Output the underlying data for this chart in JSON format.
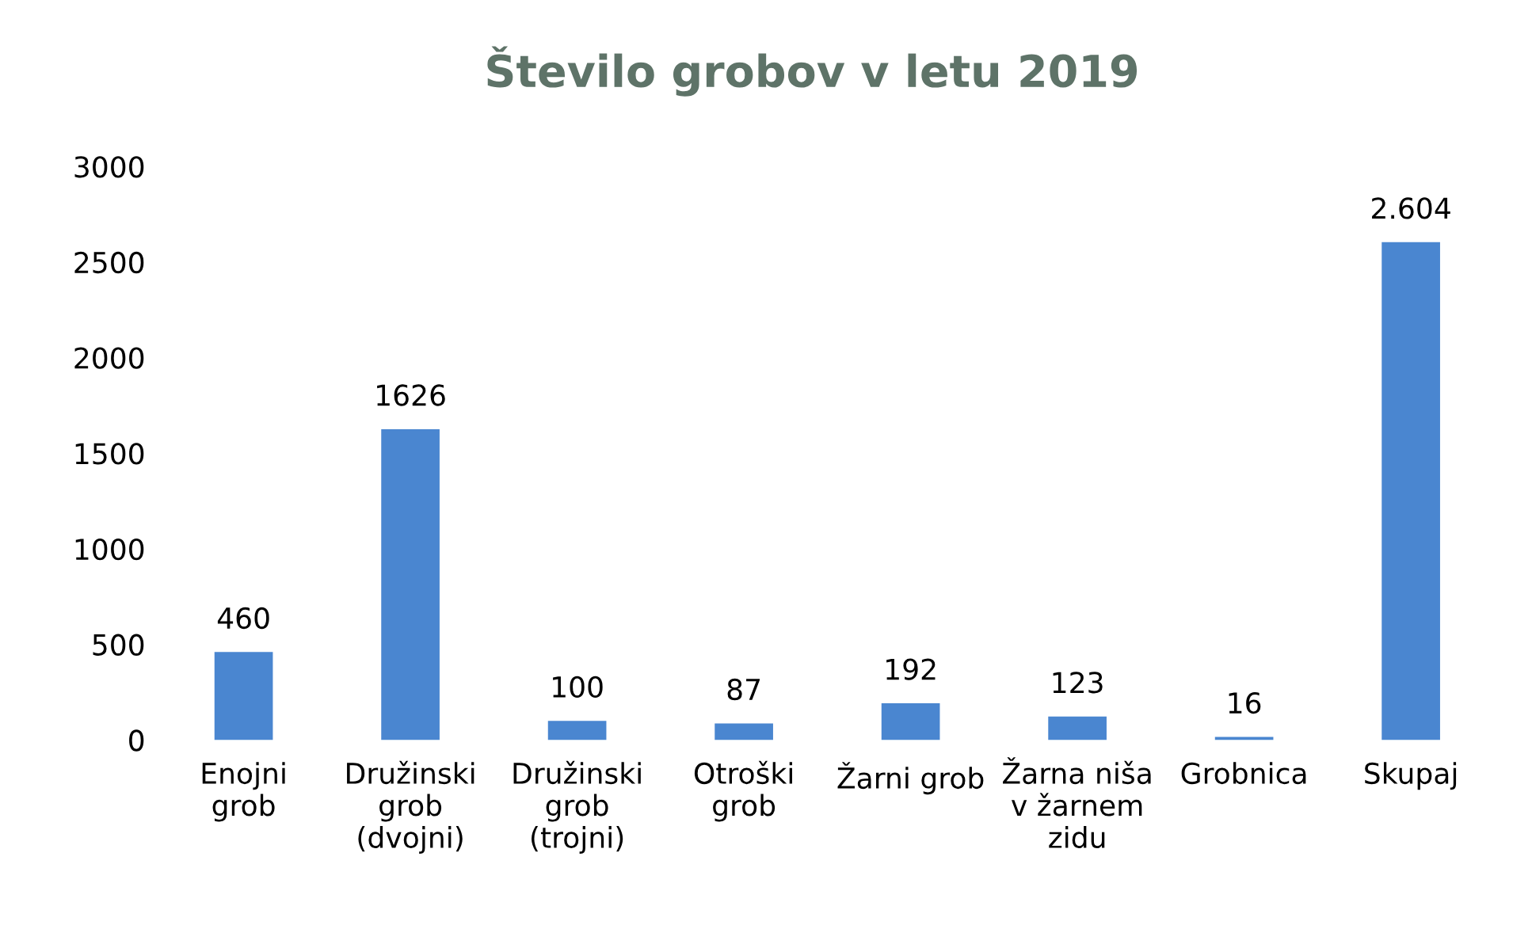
{
  "chart_data": {
    "type": "bar",
    "title": "Število grobov v letu 2019",
    "categories": [
      "Enojni\ngrob",
      "Družinski\ngrob\n(dvojni)",
      "Družinski\ngrob\n(trojni)",
      "Otroški\ngrob",
      "Žarni grob",
      "Žarna niša\nv žarnem\nzidu",
      "Grobnica",
      "Skupaj"
    ],
    "values": [
      460,
      1626,
      100,
      87,
      192,
      123,
      16,
      2604
    ],
    "value_labels": [
      "460",
      "1626",
      "100",
      "87",
      "192",
      "123",
      "16",
      "2.604"
    ],
    "color": "#4a86d0",
    "ylim": [
      0,
      3000
    ],
    "yticks": [
      0,
      500,
      1000,
      1500,
      2000,
      2500,
      3000
    ]
  }
}
